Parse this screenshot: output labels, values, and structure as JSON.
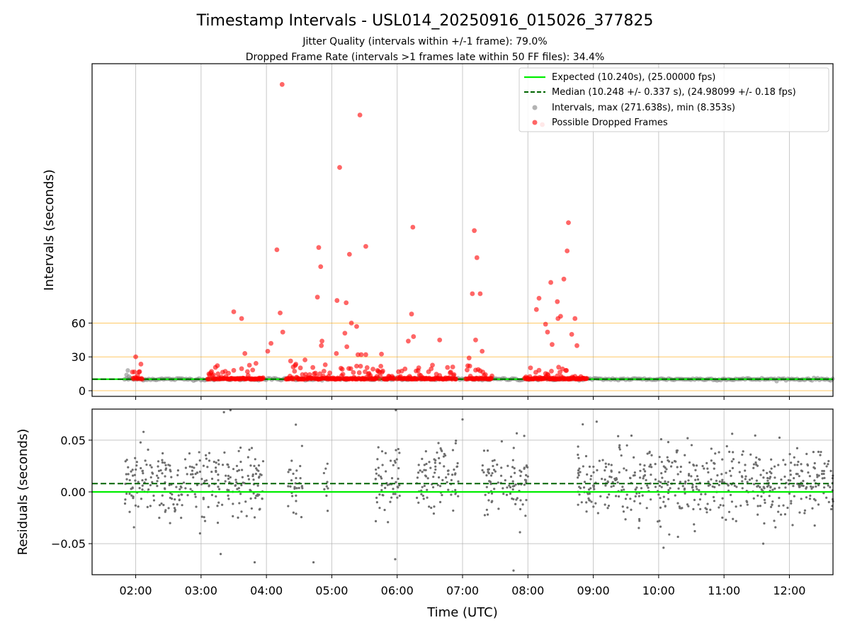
{
  "figure": {
    "title": "Timestamp Intervals - USL014_20250916_015026_377825",
    "subtitle_jitter": "Jitter Quality (intervals within +/-1 frame): 79.0%",
    "subtitle_dropped": "Dropped Frame Rate (intervals >1 frames late within 50 FF files): 34.4%"
  },
  "colors": {
    "expected": "#00ee00",
    "median": "#006400",
    "intervals": "#808080",
    "dropped": "#ff0000",
    "threshold": "#ffa500",
    "grid": "#b0b0b0"
  },
  "chart_data": [
    {
      "type": "scatter",
      "name": "intervals",
      "ylabel": "Intervals (seconds)",
      "xlim_hours": [
        1.333,
        12.667
      ],
      "y_ticks": [
        0,
        30,
        60
      ],
      "ylim": [
        -5,
        290
      ],
      "reference_lines": {
        "expected": 10.24,
        "median": 10.248,
        "thresholds": [
          0,
          30,
          60
        ]
      },
      "legend": {
        "position": "top-right",
        "entries": [
          {
            "label": "Expected (10.240s), (25.00000 fps)",
            "marker": "solid-line",
            "color": "#00ee00"
          },
          {
            "label": "Median (10.248 +/- 0.337 s), (24.98099 +/- 0.18 fps)",
            "marker": "dashed-line",
            "color": "#006400"
          },
          {
            "label": "Intervals, max (271.638s), min (8.353s)",
            "marker": "dot",
            "color": "#808080"
          },
          {
            "label": "Possible Dropped Frames",
            "marker": "dot",
            "color": "#ff0000"
          }
        ]
      },
      "normal_interval_coverage_hours": [
        1.83,
        12.67
      ],
      "dropped_frame_clusters_hours": [
        [
          1.95,
          2.1
        ],
        [
          3.1,
          3.95
        ],
        [
          4.3,
          5.95
        ],
        [
          6.0,
          6.9
        ],
        [
          7.05,
          7.45
        ],
        [
          7.95,
          8.9
        ]
      ],
      "dropped_frames_outliers": [
        {
          "t": 4.24,
          "v": 271.6
        },
        {
          "t": 5.43,
          "v": 244.5
        },
        {
          "t": 8.22,
          "v": 236
        },
        {
          "t": 5.12,
          "v": 198
        },
        {
          "t": 6.24,
          "v": 145
        },
        {
          "t": 7.18,
          "v": 142
        },
        {
          "t": 8.62,
          "v": 149
        },
        {
          "t": 4.16,
          "v": 125
        },
        {
          "t": 4.8,
          "v": 127
        },
        {
          "t": 5.52,
          "v": 128
        },
        {
          "t": 5.27,
          "v": 121
        },
        {
          "t": 8.6,
          "v": 124
        },
        {
          "t": 7.22,
          "v": 118
        },
        {
          "t": 4.83,
          "v": 110
        },
        {
          "t": 8.55,
          "v": 99
        },
        {
          "t": 8.35,
          "v": 96
        },
        {
          "t": 8.45,
          "v": 79
        },
        {
          "t": 7.15,
          "v": 86
        },
        {
          "t": 7.27,
          "v": 86
        },
        {
          "t": 4.78,
          "v": 83
        },
        {
          "t": 5.08,
          "v": 80
        },
        {
          "t": 8.17,
          "v": 82
        },
        {
          "t": 5.22,
          "v": 78
        },
        {
          "t": 8.13,
          "v": 72
        },
        {
          "t": 3.5,
          "v": 70
        },
        {
          "t": 4.21,
          "v": 69
        },
        {
          "t": 6.22,
          "v": 68
        },
        {
          "t": 8.5,
          "v": 66
        },
        {
          "t": 8.46,
          "v": 64
        },
        {
          "t": 3.62,
          "v": 64
        },
        {
          "t": 8.72,
          "v": 64
        },
        {
          "t": 8.27,
          "v": 59
        },
        {
          "t": 5.3,
          "v": 60
        },
        {
          "t": 5.38,
          "v": 57
        },
        {
          "t": 4.25,
          "v": 52
        },
        {
          "t": 5.2,
          "v": 51
        },
        {
          "t": 8.67,
          "v": 50
        },
        {
          "t": 8.3,
          "v": 52
        },
        {
          "t": 6.25,
          "v": 48
        },
        {
          "t": 7.2,
          "v": 45
        },
        {
          "t": 6.65,
          "v": 45
        },
        {
          "t": 6.17,
          "v": 44
        },
        {
          "t": 4.85,
          "v": 44
        },
        {
          "t": 4.07,
          "v": 42
        },
        {
          "t": 8.37,
          "v": 41
        },
        {
          "t": 4.84,
          "v": 40
        },
        {
          "t": 5.23,
          "v": 39
        },
        {
          "t": 8.75,
          "v": 40
        },
        {
          "t": 3.67,
          "v": 33
        },
        {
          "t": 4.02,
          "v": 35
        },
        {
          "t": 5.07,
          "v": 33
        },
        {
          "t": 7.3,
          "v": 35
        },
        {
          "t": 7.1,
          "v": 29
        },
        {
          "t": 5.45,
          "v": 32
        },
        {
          "t": 5.52,
          "v": 32
        }
      ]
    },
    {
      "type": "scatter",
      "name": "residuals",
      "ylabel": "Residuals (seconds)",
      "xlabel": "Time (UTC)",
      "xlim_hours": [
        1.333,
        12.667
      ],
      "ylim": [
        -0.08,
        0.08
      ],
      "y_ticks": [
        -0.05,
        0.0,
        0.05
      ],
      "y_tick_labels": [
        "−0.05",
        "0.00",
        "0.05"
      ],
      "x_ticks_hours": [
        2,
        3,
        4,
        5,
        6,
        7,
        8,
        9,
        10,
        11,
        12
      ],
      "x_tick_labels": [
        "02:00",
        "03:00",
        "04:00",
        "05:00",
        "06:00",
        "07:00",
        "08:00",
        "09:00",
        "10:00",
        "11:00",
        "12:00"
      ],
      "reference_lines": {
        "expected": 0.0,
        "median": 0.008
      },
      "residual_clusters": [
        {
          "t_start": 1.83,
          "t_end": 3.95,
          "center": 0.008,
          "spread": 0.017
        },
        {
          "t_start": 4.32,
          "t_end": 4.55,
          "center": 0.008,
          "spread": 0.017
        },
        {
          "t_start": 4.88,
          "t_end": 4.95,
          "center": 0.008,
          "spread": 0.017
        },
        {
          "t_start": 5.65,
          "t_end": 6.05,
          "center": 0.012,
          "spread": 0.017
        },
        {
          "t_start": 6.3,
          "t_end": 6.95,
          "center": 0.012,
          "spread": 0.017
        },
        {
          "t_start": 7.3,
          "t_end": 8.0,
          "center": 0.012,
          "spread": 0.017
        },
        {
          "t_start": 8.75,
          "t_end": 12.67,
          "center": 0.01,
          "spread": 0.017
        }
      ],
      "residual_outliers": [
        {
          "t": 3.45,
          "v": 0.079
        },
        {
          "t": 3.35,
          "v": 0.077
        },
        {
          "t": 5.98,
          "v": 0.079
        },
        {
          "t": 7.78,
          "v": -0.076
        },
        {
          "t": 3.82,
          "v": -0.068
        },
        {
          "t": 4.72,
          "v": -0.068
        },
        {
          "t": 5.97,
          "v": -0.065
        },
        {
          "t": 2.12,
          "v": 0.058
        },
        {
          "t": 11.6,
          "v": -0.05
        },
        {
          "t": 3.3,
          "v": -0.06
        },
        {
          "t": 4.45,
          "v": 0.065
        },
        {
          "t": 7.0,
          "v": 0.07
        }
      ]
    }
  ]
}
